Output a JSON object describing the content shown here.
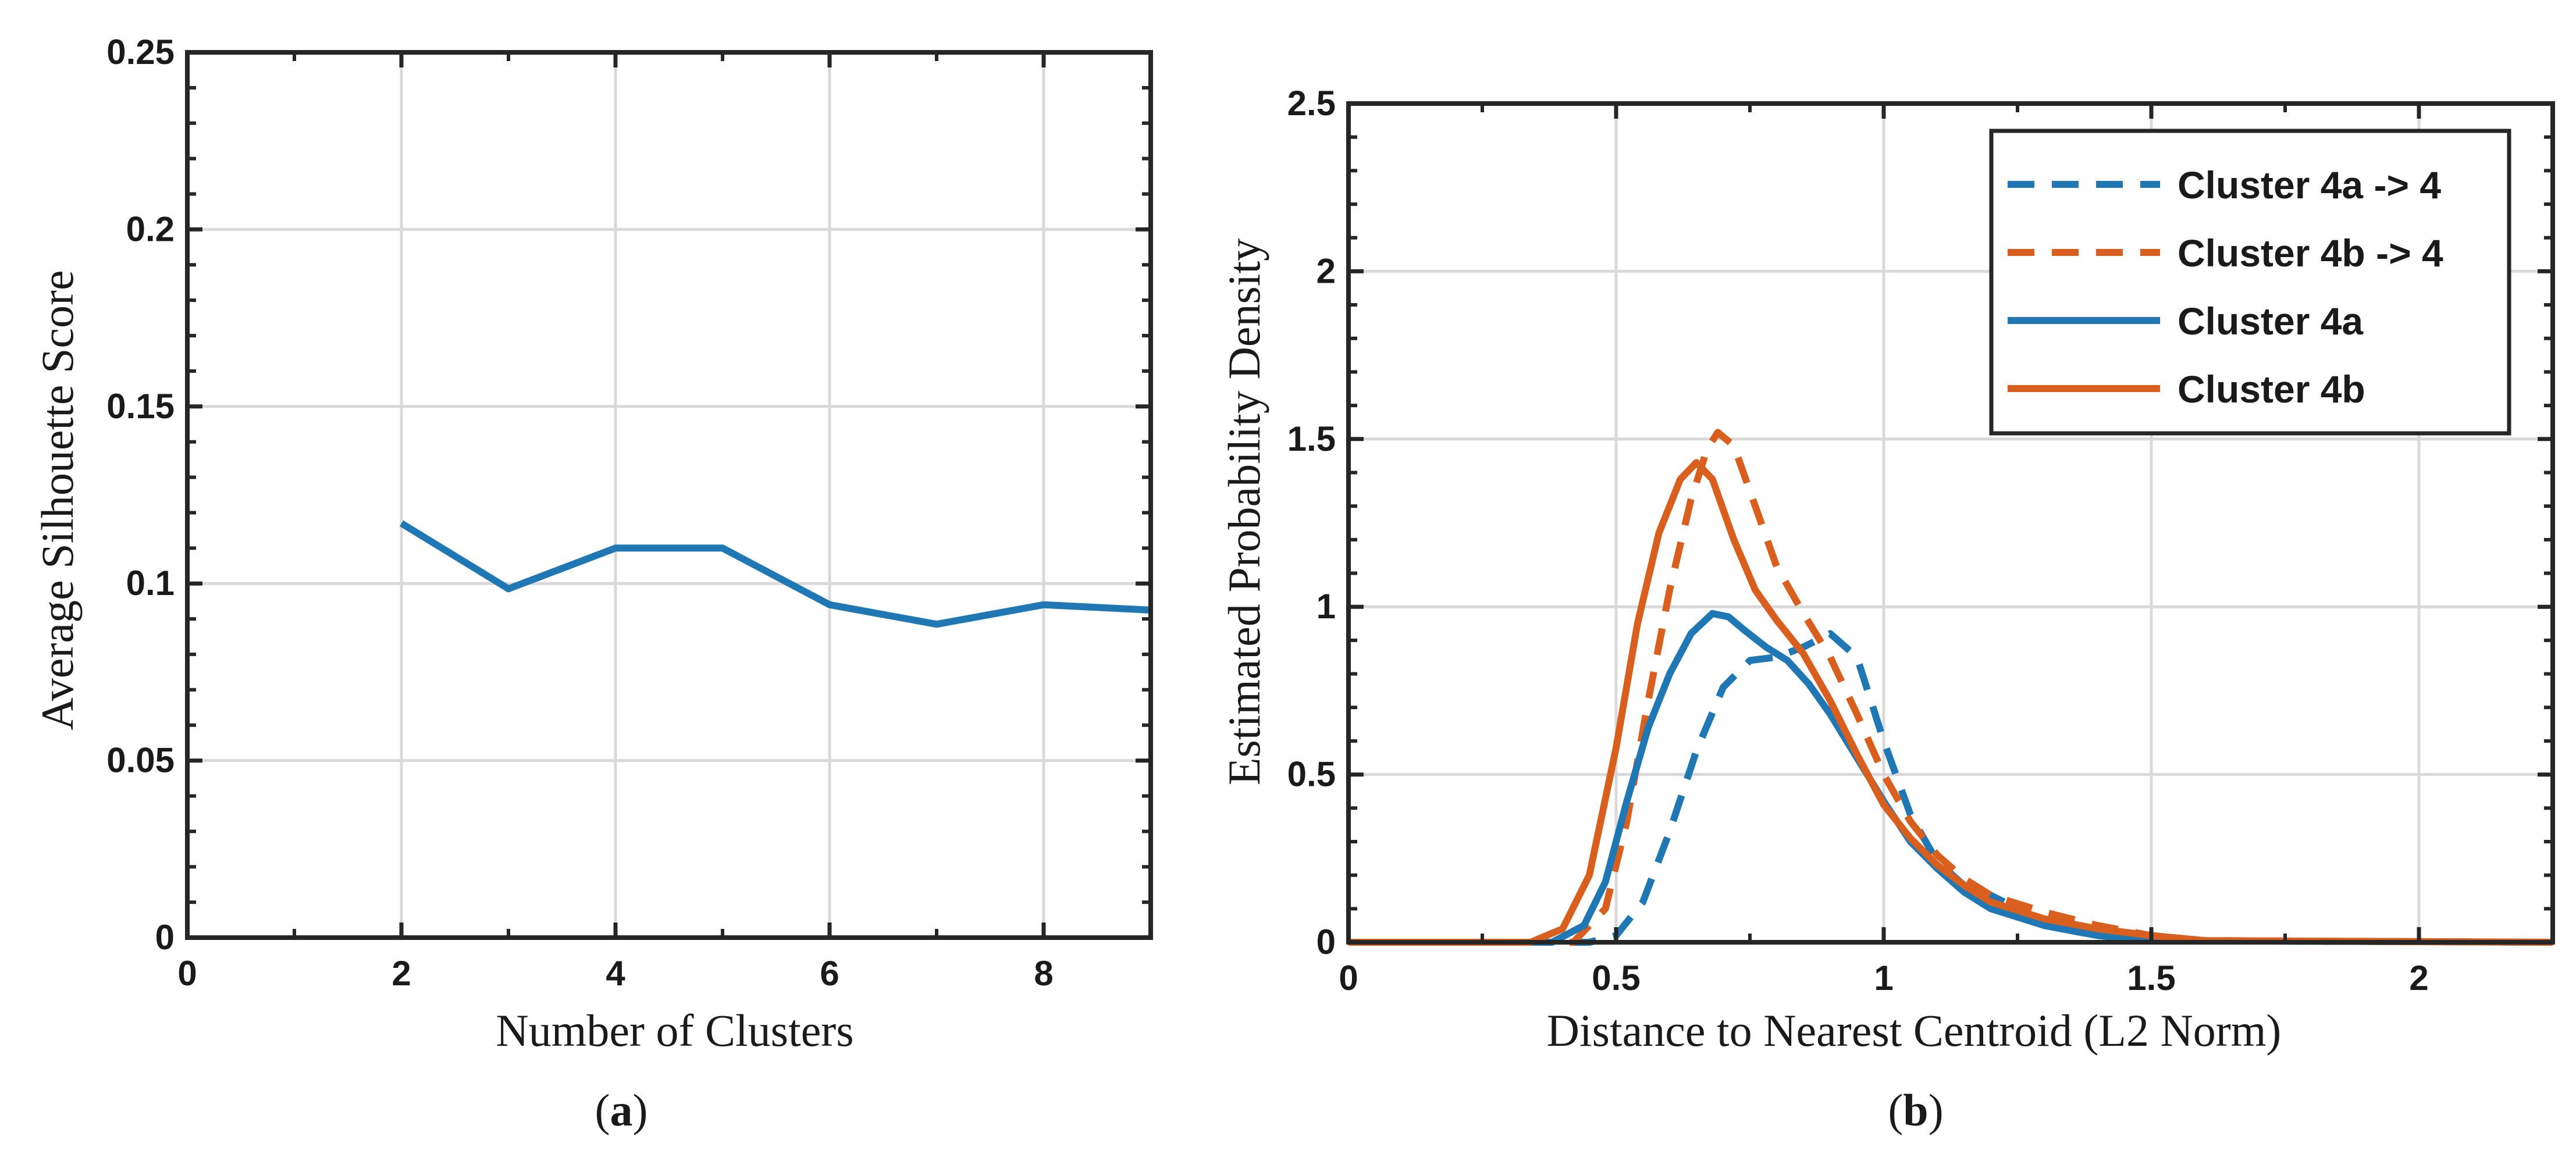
{
  "chart_data": [
    {
      "id": "a",
      "type": "line",
      "xlabel": "Number of Clusters",
      "ylabel": "Average Silhouette Score",
      "xlim": [
        0,
        9
      ],
      "ylim": [
        0,
        0.25
      ],
      "xticks": [
        0,
        2,
        4,
        6,
        8
      ],
      "xtick_labels": [
        "0",
        "2",
        "4",
        "6",
        "8"
      ],
      "yticks": [
        0,
        0.05,
        0.1,
        0.15,
        0.2,
        0.25
      ],
      "ytick_labels": [
        "0",
        "0.05",
        "0.1",
        "0.15",
        "0.2",
        "0.25"
      ],
      "grid": true,
      "series": [
        {
          "name": "Average Silhouette Score",
          "color": "#1f77b4",
          "style": "solid",
          "x": [
            2,
            3,
            4,
            5,
            6,
            7,
            8,
            9
          ],
          "values": [
            0.117,
            0.0985,
            0.11,
            0.11,
            0.094,
            0.0885,
            0.094,
            0.0925
          ]
        }
      ],
      "panel_label": "a"
    },
    {
      "id": "b",
      "type": "line",
      "xlabel": "Distance to Nearest Centroid (L2 Norm)",
      "ylabel": "Estimated Probability Density",
      "xlim": [
        0,
        2.25
      ],
      "ylim": [
        0,
        2.5
      ],
      "xticks": [
        0,
        0.5,
        1,
        1.5,
        2
      ],
      "xtick_labels": [
        "0",
        "0.5",
        "1",
        "1.5",
        "2"
      ],
      "yticks": [
        0,
        0.5,
        1,
        1.5,
        2,
        2.5
      ],
      "ytick_labels": [
        "0",
        "0.5",
        "1",
        "1.5",
        "2",
        "2.5"
      ],
      "grid": true,
      "legend_position": "top-right",
      "series": [
        {
          "name": "Cluster 4a -> 4",
          "color": "#1f77b4",
          "style": "dashed",
          "x": [
            0,
            0.45,
            0.5,
            0.55,
            0.6,
            0.65,
            0.7,
            0.75,
            0.8,
            0.85,
            0.9,
            0.95,
            1.0,
            1.05,
            1.1,
            1.15,
            1.2,
            1.25,
            1.3,
            1.4,
            1.5,
            2.25
          ],
          "values": [
            0,
            0,
            0.02,
            0.12,
            0.33,
            0.57,
            0.76,
            0.84,
            0.85,
            0.88,
            0.92,
            0.85,
            0.6,
            0.38,
            0.24,
            0.17,
            0.14,
            0.1,
            0.05,
            0.02,
            0.005,
            0
          ]
        },
        {
          "name": "Cluster 4b -> 4",
          "color": "#d95f1e",
          "style": "dashed",
          "x": [
            0,
            0.42,
            0.48,
            0.52,
            0.56,
            0.6,
            0.64,
            0.67,
            0.69,
            0.72,
            0.76,
            0.8,
            0.85,
            0.9,
            0.95,
            1.0,
            1.05,
            1.1,
            1.15,
            1.2,
            1.3,
            1.4,
            1.5,
            1.6,
            2.25
          ],
          "values": [
            0,
            0,
            0.1,
            0.36,
            0.72,
            1.05,
            1.32,
            1.47,
            1.52,
            1.48,
            1.3,
            1.12,
            0.98,
            0.85,
            0.68,
            0.5,
            0.36,
            0.26,
            0.19,
            0.14,
            0.09,
            0.05,
            0.02,
            0.005,
            0
          ]
        },
        {
          "name": "Cluster 4a",
          "color": "#1f77b4",
          "style": "solid",
          "x": [
            0,
            0.38,
            0.44,
            0.48,
            0.52,
            0.56,
            0.6,
            0.64,
            0.68,
            0.71,
            0.74,
            0.78,
            0.82,
            0.86,
            0.9,
            0.95,
            1.0,
            1.05,
            1.1,
            1.15,
            1.2,
            1.3,
            1.4,
            1.5,
            2.25
          ],
          "values": [
            0,
            0,
            0.05,
            0.18,
            0.42,
            0.64,
            0.8,
            0.92,
            0.98,
            0.97,
            0.93,
            0.88,
            0.84,
            0.77,
            0.68,
            0.55,
            0.42,
            0.3,
            0.22,
            0.15,
            0.1,
            0.05,
            0.02,
            0.005,
            0
          ]
        },
        {
          "name": "Cluster 4b",
          "color": "#d95f1e",
          "style": "solid",
          "x": [
            0,
            0.34,
            0.4,
            0.45,
            0.5,
            0.54,
            0.58,
            0.62,
            0.65,
            0.68,
            0.72,
            0.76,
            0.8,
            0.85,
            0.9,
            0.95,
            1.0,
            1.05,
            1.1,
            1.15,
            1.2,
            1.3,
            1.4,
            1.5,
            1.6,
            2.25
          ],
          "values": [
            0,
            0,
            0.04,
            0.2,
            0.58,
            0.95,
            1.22,
            1.38,
            1.43,
            1.38,
            1.2,
            1.05,
            0.96,
            0.86,
            0.72,
            0.56,
            0.41,
            0.31,
            0.23,
            0.17,
            0.12,
            0.07,
            0.04,
            0.02,
            0.005,
            0
          ]
        }
      ],
      "panel_label": "b"
    }
  ]
}
